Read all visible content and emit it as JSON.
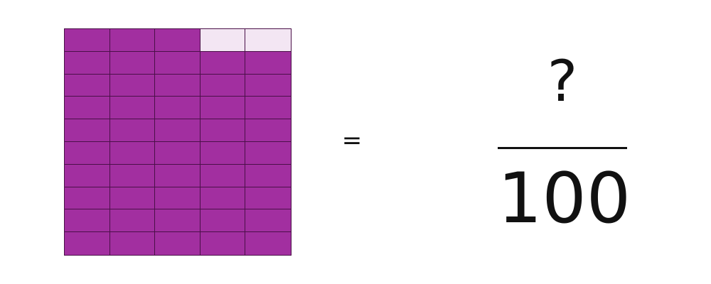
{
  "hundredths_grid": {
    "columns": 5,
    "rows": 10,
    "shaded_cells": 48,
    "unshaded_cells_top_row": [
      4,
      5
    ],
    "shaded_color": "#a22fa0",
    "unshaded_color": "#f3e6f3"
  },
  "equation": {
    "operator": "=",
    "numerator": "?",
    "denominator": "100"
  }
}
